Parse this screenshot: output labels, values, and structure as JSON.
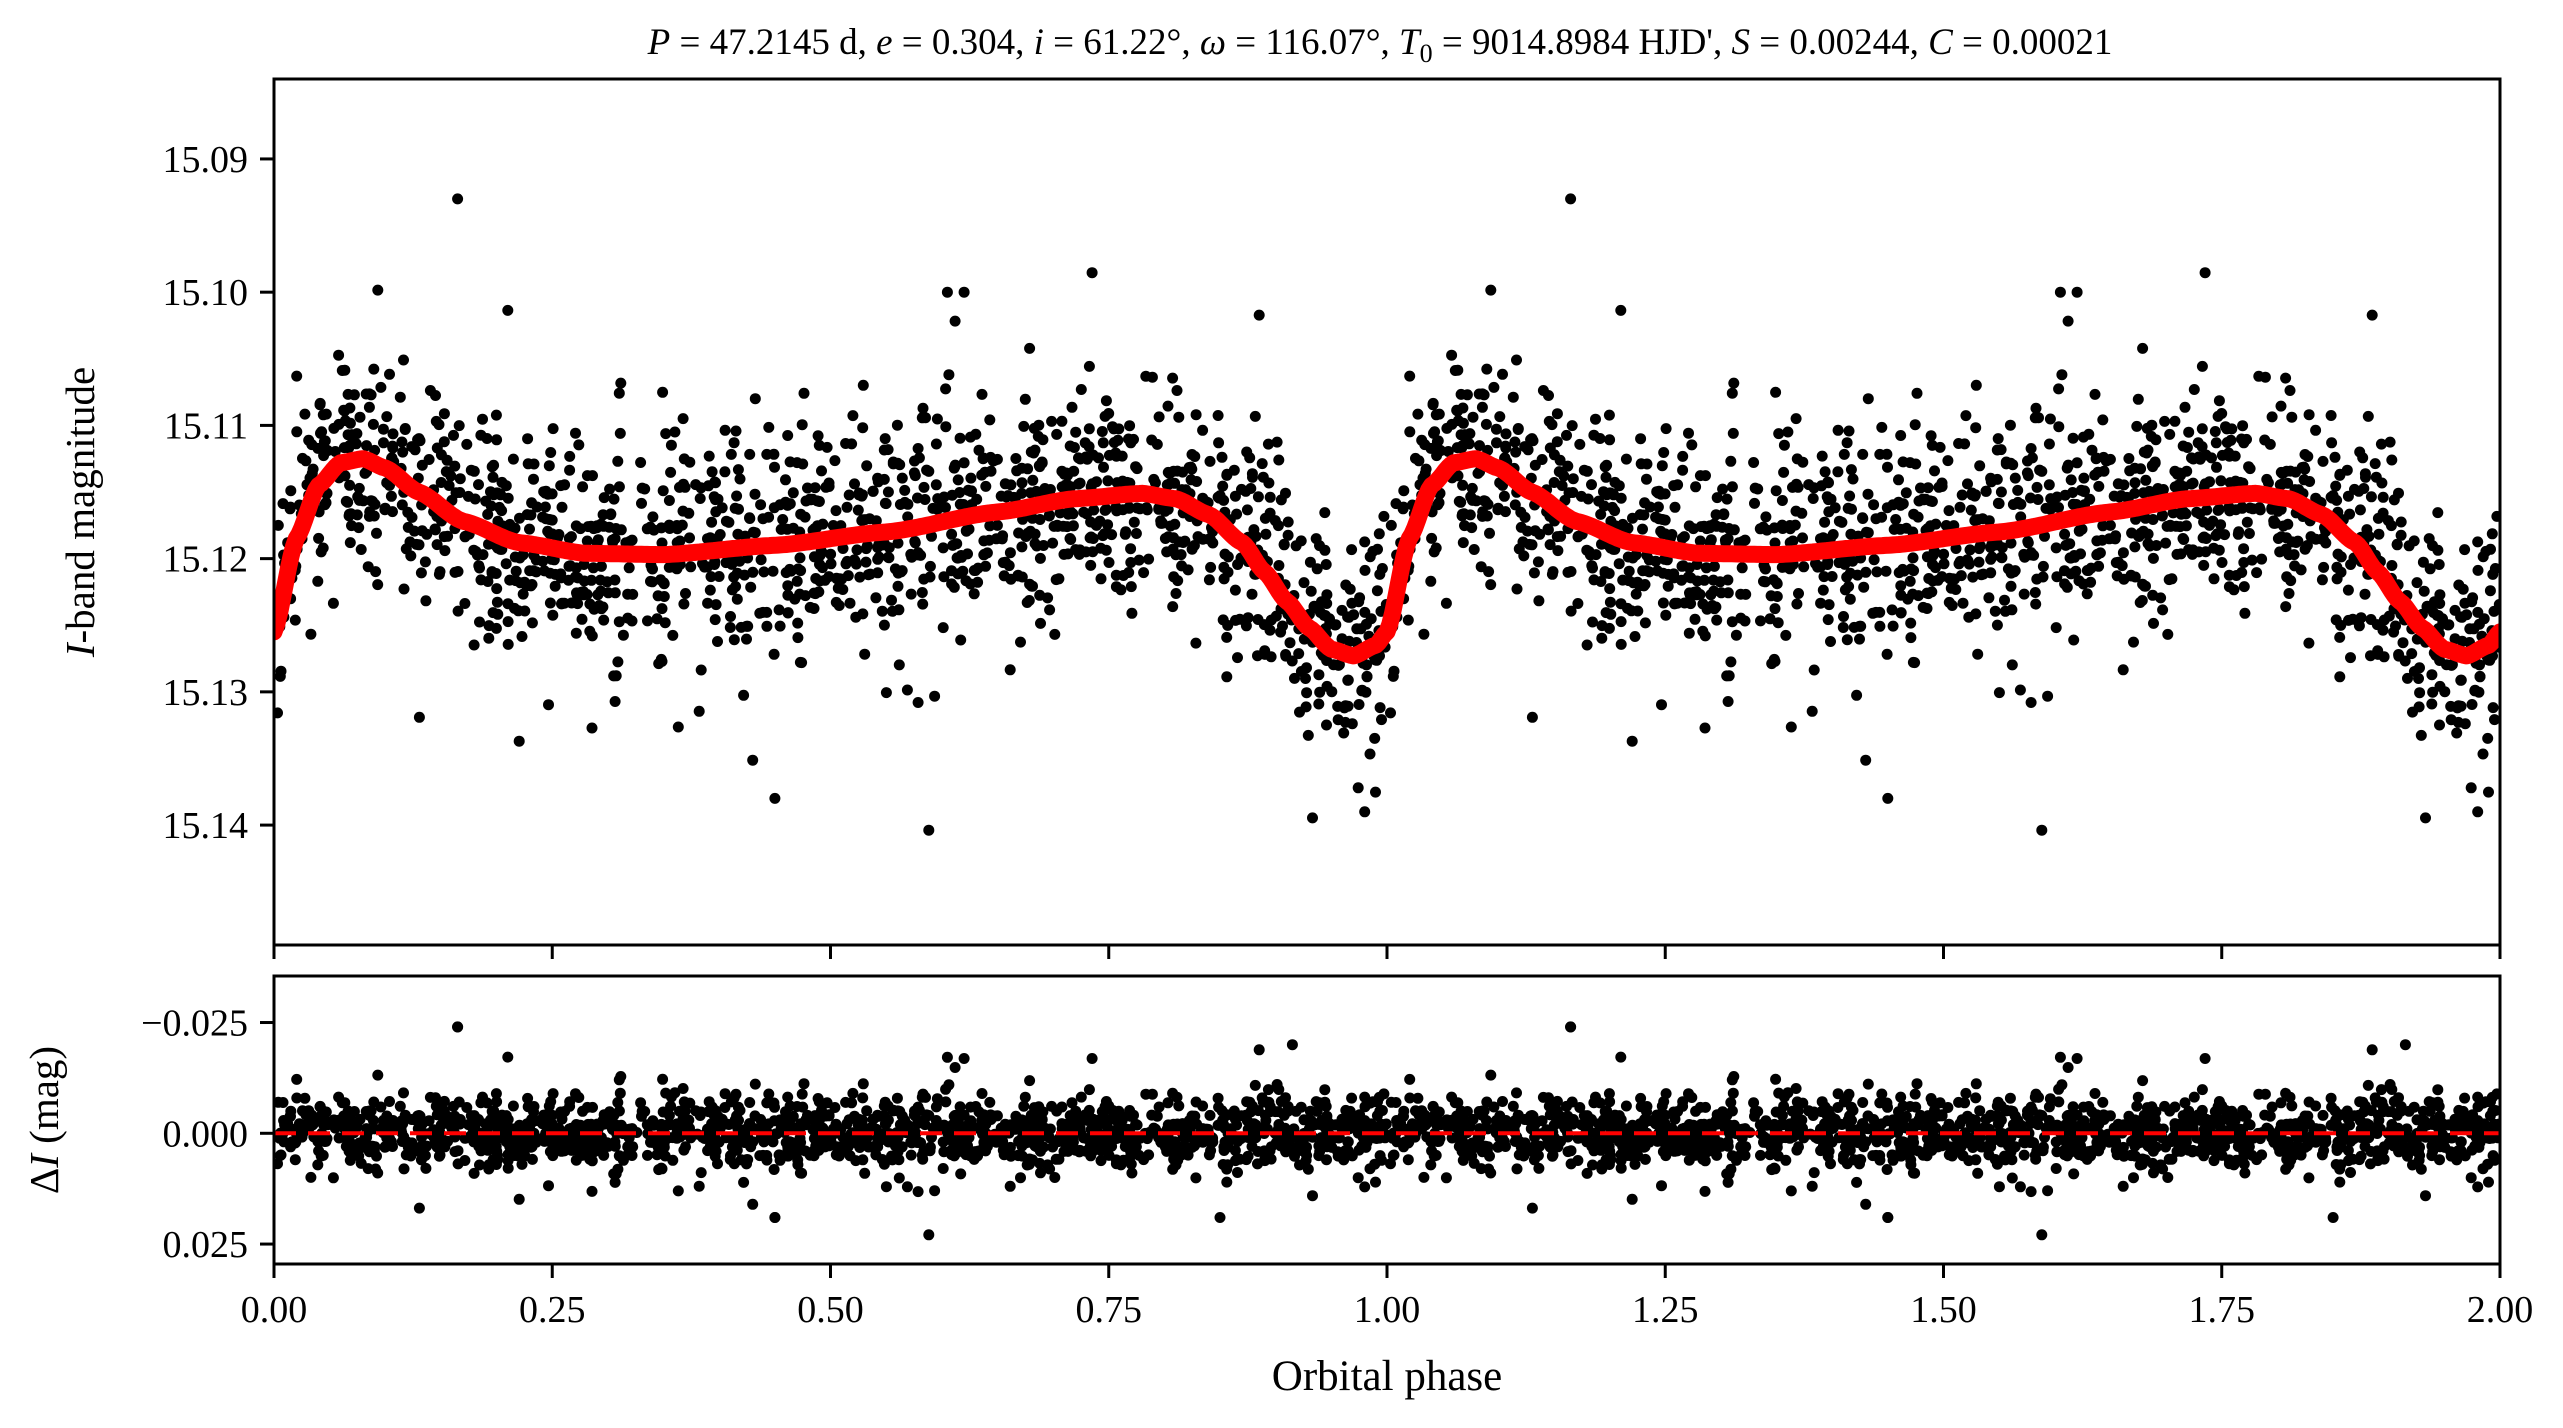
{
  "figure": {
    "title": "P = 47.2145 d, e = 0.304, i = 61.22°, ω = 116.07°, T0 = 9014.8984 HJD', S = 0.00244, C = 0.00021",
    "title_parts": {
      "P_sym": "P",
      "P_val": " = 47.2145 d, ",
      "e_sym": "e",
      "e_val": " = 0.304, ",
      "i_sym": "i",
      "i_val": " = 61.22°, ",
      "w_sym": "ω",
      "w_val": " = 116.07°, ",
      "T_sym": "T",
      "T_sub": "0",
      "T_val": " = 9014.8984 HJD', ",
      "S_sym": "S",
      "S_val": " = 0.00244, ",
      "C_sym": "C",
      "C_val": " = 0.00021"
    },
    "colors": {
      "points": "#000000",
      "model": "#ff0000",
      "zero_line": "#ff0000"
    }
  },
  "chart_data": [
    {
      "type": "scatter",
      "panel": "top",
      "ylabel": "I-band magnitude",
      "ylabel_parts": {
        "italic": "I",
        "rest": "-band magnitude"
      },
      "xlim": [
        0.0,
        2.0
      ],
      "ylim": [
        15.149,
        15.084
      ],
      "y_inverted": true,
      "yticks": [
        15.09,
        15.1,
        15.11,
        15.12,
        15.13,
        15.14
      ],
      "ytick_labels": [
        "15.09",
        "15.10",
        "15.11",
        "15.12",
        "15.13",
        "15.14"
      ],
      "xticks": [
        0.0,
        0.25,
        0.5,
        0.75,
        1.0,
        1.25,
        1.5,
        1.75,
        2.0
      ],
      "grid": false,
      "series": [
        {
          "kind": "points",
          "description_of_spread": "about 2400 photometric points per cycle, scatter ±0.007 mag around the model, repeated for phase 1–2",
          "notable_points": [
            [
              0.165,
              15.093
            ],
            [
              1.165,
              15.093
            ],
            [
              0.605,
              15.1
            ],
            [
              0.62,
              15.1
            ],
            [
              1.605,
              15.1
            ],
            [
              1.62,
              15.1
            ],
            [
              0.98,
              15.139
            ],
            [
              1.98,
              15.139
            ],
            [
              0.45,
              15.138
            ],
            [
              1.45,
              15.138
            ]
          ]
        },
        {
          "kind": "model",
          "x": [
            0.0,
            0.02,
            0.04,
            0.06,
            0.08,
            0.1,
            0.13,
            0.17,
            0.22,
            0.28,
            0.35,
            0.45,
            0.55,
            0.65,
            0.72,
            0.78,
            0.81,
            0.84,
            0.87,
            0.89,
            0.91,
            0.93,
            0.95,
            0.97,
            0.99,
            1.0
          ],
          "y": [
            15.1255,
            15.1185,
            15.1145,
            15.1128,
            15.1125,
            15.1132,
            15.115,
            15.1172,
            15.1188,
            15.1196,
            15.1197,
            15.119,
            15.118,
            15.1165,
            15.1155,
            15.1151,
            15.1155,
            15.1167,
            15.1188,
            15.121,
            15.1232,
            15.1252,
            15.1268,
            15.1273,
            15.1265,
            15.1255
          ]
        }
      ]
    },
    {
      "type": "scatter",
      "panel": "bottom",
      "ylabel": "ΔI (mag)",
      "ylabel_parts": {
        "delta": "Δ",
        "italic": "I",
        "rest": " (mag)"
      },
      "xlabel": "Orbital phase",
      "xlim": [
        0.0,
        2.0
      ],
      "ylim": [
        0.0295,
        -0.0355
      ],
      "y_inverted": true,
      "yticks": [
        -0.025,
        0.0,
        0.025
      ],
      "ytick_labels": [
        "−0.025",
        "0.000",
        "0.025"
      ],
      "xticks": [
        0.0,
        0.25,
        0.5,
        0.75,
        1.0,
        1.25,
        1.5,
        1.75,
        2.0
      ],
      "xtick_labels": [
        "0.00",
        "0.25",
        "0.50",
        "0.75",
        "1.00",
        "1.25",
        "1.50",
        "1.75",
        "2.00"
      ],
      "zero_line": {
        "y": 0.0,
        "style": "dashed"
      },
      "series": [
        {
          "kind": "points",
          "description_of_spread": "residuals scatter ±0.007 mag around zero",
          "notable_points": [
            [
              0.165,
              -0.024
            ],
            [
              1.165,
              -0.024
            ],
            [
              0.915,
              -0.02
            ],
            [
              1.915,
              -0.02
            ],
            [
              0.45,
              0.019
            ],
            [
              1.45,
              0.019
            ],
            [
              0.85,
              0.019
            ],
            [
              1.85,
              0.019
            ]
          ]
        }
      ]
    }
  ]
}
